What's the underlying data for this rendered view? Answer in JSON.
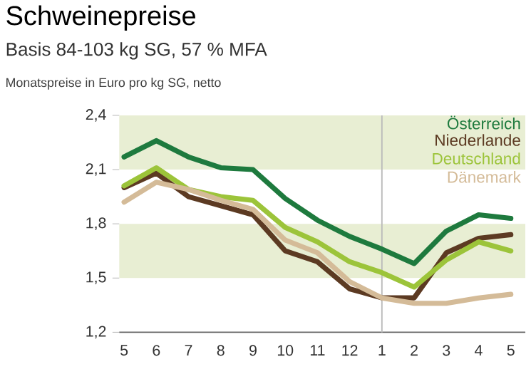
{
  "chart_data": {
    "type": "line",
    "title": "Schweinepreise",
    "subtitle": "Basis 84-103 kg SG, 57 % MFA",
    "annotations": [
      "Monatspreise in Euro pro kg SG, netto"
    ],
    "categories": [
      "5",
      "6",
      "7",
      "8",
      "9",
      "10",
      "11",
      "12",
      "1",
      "2",
      "3",
      "4",
      "5"
    ],
    "ylim": [
      1.2,
      2.4
    ],
    "yticks": [
      {
        "value": 1.2,
        "label": "1,2"
      },
      {
        "value": 1.5,
        "label": "1,5"
      },
      {
        "value": 1.8,
        "label": "1,8"
      },
      {
        "value": 2.1,
        "label": "2,1"
      },
      {
        "value": 2.4,
        "label": "2,4"
      }
    ],
    "series": [
      {
        "name": "Österreich",
        "color": "#1e7a3e",
        "values": [
          2.17,
          2.26,
          2.17,
          2.11,
          2.1,
          1.94,
          1.82,
          1.73,
          1.66,
          1.58,
          1.76,
          1.85,
          1.83
        ]
      },
      {
        "name": "Niederlande",
        "color": "#5c3a22",
        "values": [
          2.0,
          2.08,
          1.95,
          1.9,
          1.85,
          1.65,
          1.59,
          1.44,
          1.39,
          1.39,
          1.64,
          1.72,
          1.74
        ]
      },
      {
        "name": "Deutschland",
        "color": "#9cc43a",
        "values": [
          2.01,
          2.11,
          1.99,
          1.95,
          1.93,
          1.78,
          1.7,
          1.59,
          1.53,
          1.45,
          1.6,
          1.7,
          1.65
        ]
      },
      {
        "name": "Dänemark",
        "color": "#d4bb98",
        "values": [
          1.92,
          2.03,
          1.99,
          1.93,
          1.88,
          1.71,
          1.64,
          1.48,
          1.39,
          1.36,
          1.36,
          1.39,
          1.41
        ]
      }
    ],
    "bands": [
      {
        "axis": "y",
        "from": 1.5,
        "to": 1.8,
        "color": "#e8eed3"
      },
      {
        "axis": "y",
        "from": 2.1,
        "to": 2.4,
        "color": "#e8eed3"
      }
    ],
    "ref_lines": [
      {
        "axis": "x",
        "value": "1",
        "color": "#bbbbbb"
      }
    ],
    "legend": "top right",
    "grid": false,
    "line_style": "solid",
    "marker": "none"
  }
}
